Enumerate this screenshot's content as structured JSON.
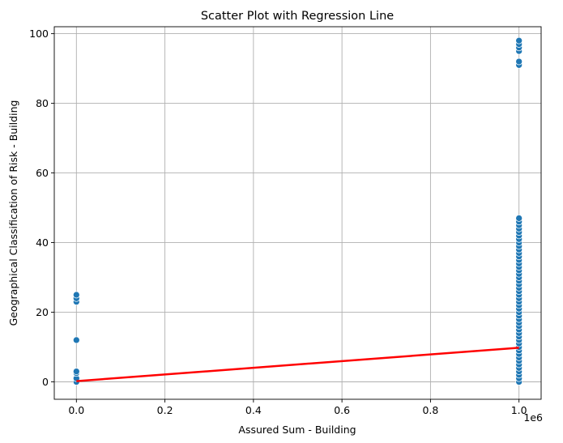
{
  "chart_data": {
    "type": "scatter",
    "title": "Scatter Plot with Regression Line",
    "xlabel": "Assured Sum - Building",
    "ylabel": "Geographical Classification of Risk - Building",
    "x_offset_label": "1e6",
    "xlim": [
      -0.05,
      1.05
    ],
    "ylim": [
      -5,
      102
    ],
    "x_ticks": [
      0.0,
      0.2,
      0.4,
      0.6,
      0.8,
      1.0
    ],
    "x_tick_labels": [
      "0.0",
      "0.2",
      "0.4",
      "0.6",
      "0.8",
      "1.0"
    ],
    "y_ticks": [
      0,
      20,
      40,
      60,
      80,
      100
    ],
    "y_tick_labels": [
      "0",
      "20",
      "40",
      "60",
      "80",
      "100"
    ],
    "grid": true,
    "point_color": "#1f77b4",
    "line_color": "#ff0000",
    "series": [
      {
        "type": "scatter",
        "points": [
          [
            0,
            0
          ],
          [
            0,
            1
          ],
          [
            0,
            2.5
          ],
          [
            0,
            3
          ],
          [
            0,
            12
          ],
          [
            0,
            23
          ],
          [
            0,
            24
          ],
          [
            0,
            25
          ],
          [
            1,
            0
          ],
          [
            1,
            1
          ],
          [
            1,
            2
          ],
          [
            1,
            3
          ],
          [
            1,
            4
          ],
          [
            1,
            5
          ],
          [
            1,
            6
          ],
          [
            1,
            7
          ],
          [
            1,
            8
          ],
          [
            1,
            9
          ],
          [
            1,
            10
          ],
          [
            1,
            11
          ],
          [
            1,
            12
          ],
          [
            1,
            13
          ],
          [
            1,
            14
          ],
          [
            1,
            15
          ],
          [
            1,
            16
          ],
          [
            1,
            17
          ],
          [
            1,
            18
          ],
          [
            1,
            19
          ],
          [
            1,
            20
          ],
          [
            1,
            21
          ],
          [
            1,
            22
          ],
          [
            1,
            23
          ],
          [
            1,
            24
          ],
          [
            1,
            25
          ],
          [
            1,
            26
          ],
          [
            1,
            27
          ],
          [
            1,
            28
          ],
          [
            1,
            29
          ],
          [
            1,
            30
          ],
          [
            1,
            31
          ],
          [
            1,
            32
          ],
          [
            1,
            33
          ],
          [
            1,
            34
          ],
          [
            1,
            35
          ],
          [
            1,
            36
          ],
          [
            1,
            37
          ],
          [
            1,
            38
          ],
          [
            1,
            39
          ],
          [
            1,
            40
          ],
          [
            1,
            41
          ],
          [
            1,
            42
          ],
          [
            1,
            43
          ],
          [
            1,
            44
          ],
          [
            1,
            45
          ],
          [
            1,
            46
          ],
          [
            1,
            47
          ],
          [
            1,
            91
          ],
          [
            1,
            92
          ],
          [
            1,
            95
          ],
          [
            1,
            96
          ],
          [
            1,
            97
          ],
          [
            1,
            98
          ]
        ]
      },
      {
        "type": "line",
        "points": [
          [
            0,
            0.2
          ],
          [
            1,
            9.8
          ]
        ]
      }
    ]
  }
}
